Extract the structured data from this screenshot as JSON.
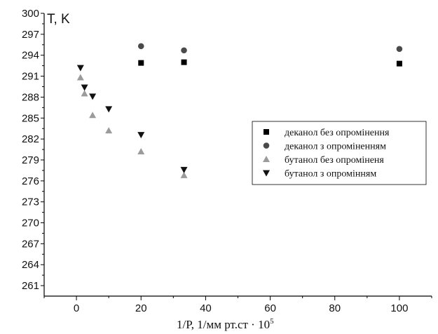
{
  "chart_data": {
    "type": "scatter",
    "title": "",
    "ylabel": "T, K",
    "xlabel_main": "1/P, 1/мм рт.ст  · 10",
    "xlabel_sup": "5",
    "xlim": [
      -10,
      110
    ],
    "ylim": [
      259.5,
      300
    ],
    "x_ticks": [
      0,
      20,
      40,
      60,
      80,
      100
    ],
    "y_ticks": [
      261,
      264,
      267,
      270,
      273,
      276,
      279,
      282,
      285,
      288,
      291,
      294,
      297,
      300
    ],
    "grid": false,
    "legend_position": "right",
    "series": [
      {
        "name": "деканол без опромінення",
        "marker": "square",
        "color": "#000000",
        "points": [
          [
            20,
            292.9
          ],
          [
            33.3,
            293.0
          ],
          [
            100,
            292.8
          ]
        ]
      },
      {
        "name": "деканол з опроміненням",
        "marker": "circle",
        "color": "#4a4a4a",
        "points": [
          [
            20,
            295.3
          ],
          [
            33.3,
            294.7
          ],
          [
            100,
            294.9
          ]
        ]
      },
      {
        "name": "бутанол без опроміненя",
        "marker": "triangle-up",
        "color": "#9b9b9b",
        "points": [
          [
            1.25,
            290.8
          ],
          [
            2.5,
            288.5
          ],
          [
            5,
            285.4
          ],
          [
            10,
            283.2
          ],
          [
            20,
            280.2
          ],
          [
            33.3,
            276.8
          ]
        ]
      },
      {
        "name": "бутанол з опромінням",
        "marker": "triangle-down",
        "color": "#111111",
        "points": [
          [
            1.25,
            292.2
          ],
          [
            2.5,
            289.4
          ],
          [
            5,
            288.1
          ],
          [
            10,
            286.3
          ],
          [
            20,
            282.6
          ],
          [
            33.3,
            277.6
          ]
        ]
      }
    ]
  }
}
